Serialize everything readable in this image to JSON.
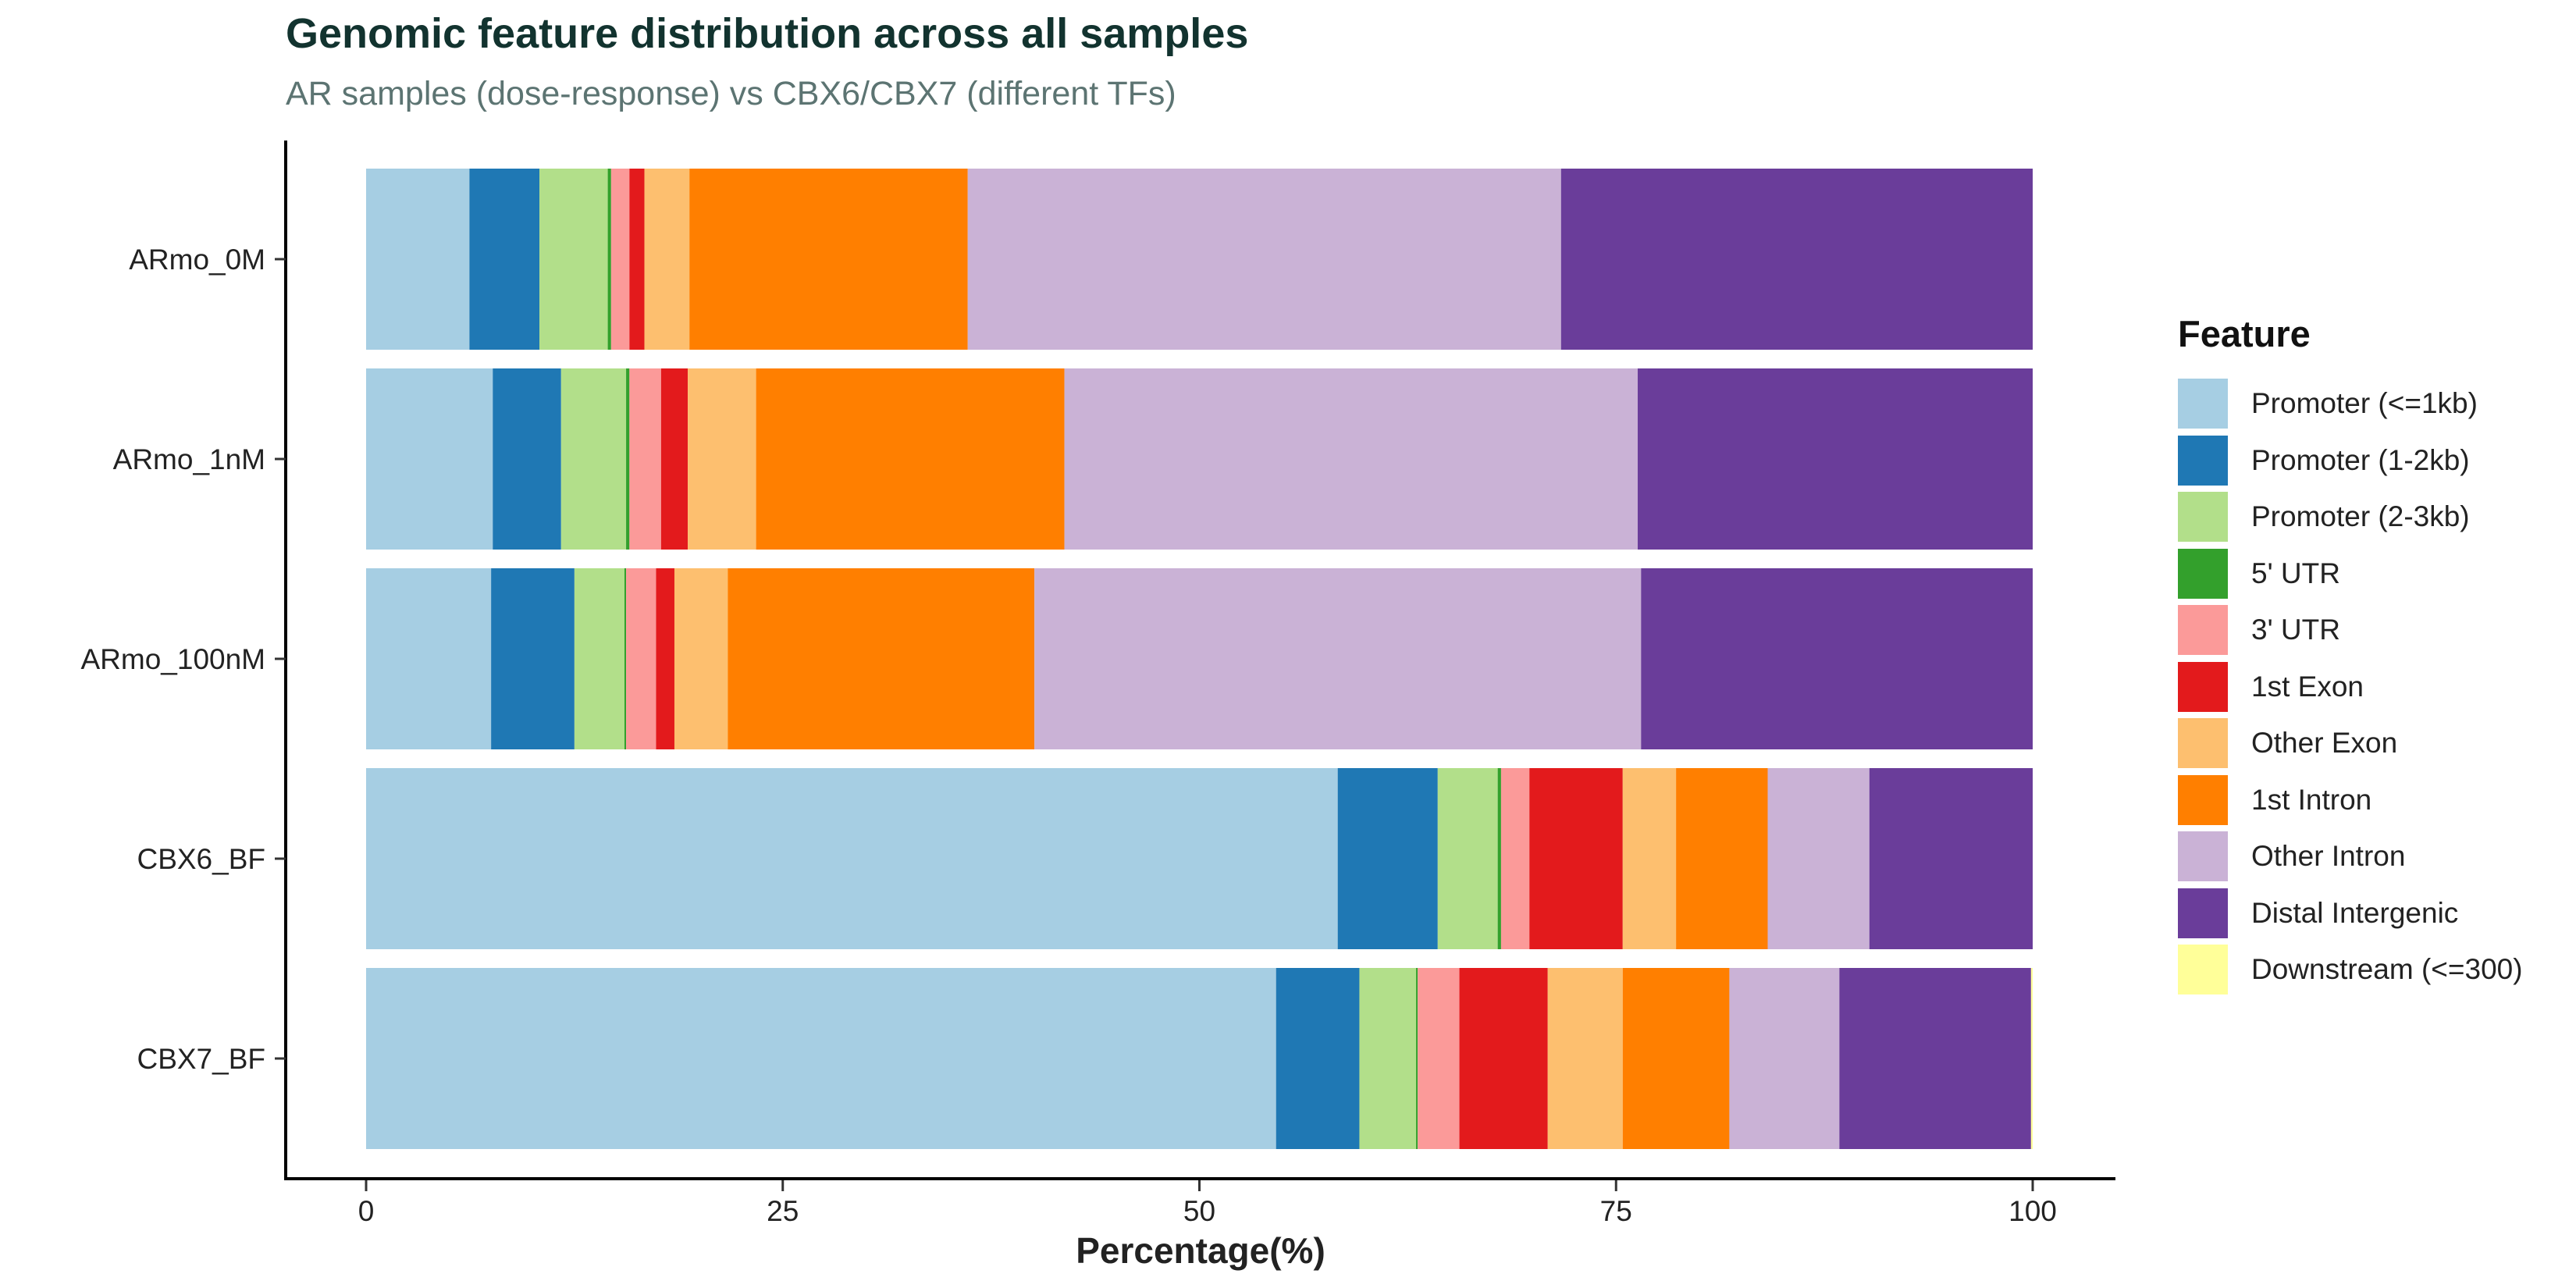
{
  "chart_data": {
    "type": "bar",
    "orientation": "horizontal",
    "stacked": true,
    "title": "Genomic feature distribution across all samples",
    "subtitle": "AR samples (dose-response) vs CBX6/CBX7 (different TFs)",
    "xlabel": "Percentage(%)",
    "ylabel": "",
    "xlim": [
      0,
      100
    ],
    "x_ticks": [
      0,
      25,
      50,
      75,
      100
    ],
    "grid": false,
    "legend_title": "Feature",
    "legend_position": "right",
    "categories": [
      "ARmo_0M",
      "ARmo_1nM",
      "ARmo_100nM",
      "CBX6_BF",
      "CBX7_BF"
    ],
    "series": [
      {
        "name": "Promoter (<=1kb)",
        "color": "#a6cee3",
        "values": [
          6.2,
          7.6,
          7.5,
          58.3,
          54.6
        ]
      },
      {
        "name": "Promoter (1-2kb)",
        "color": "#1f78b4",
        "values": [
          4.2,
          4.1,
          5.0,
          6.0,
          5.0
        ]
      },
      {
        "name": "Promoter (2-3kb)",
        "color": "#b2df8a",
        "values": [
          4.1,
          3.9,
          3.0,
          3.6,
          3.4
        ]
      },
      {
        "name": "5' UTR",
        "color": "#33a02c",
        "values": [
          0.2,
          0.2,
          0.1,
          0.2,
          0.1
        ]
      },
      {
        "name": "3' UTR",
        "color": "#fb9a99",
        "values": [
          1.1,
          1.9,
          1.8,
          1.7,
          2.5
        ]
      },
      {
        "name": "1st Exon",
        "color": "#e31a1c",
        "values": [
          0.9,
          1.6,
          1.1,
          5.6,
          5.3
        ]
      },
      {
        "name": "Other Exon",
        "color": "#fdbf6f",
        "values": [
          2.7,
          4.1,
          3.2,
          3.2,
          4.5
        ]
      },
      {
        "name": "1st Intron",
        "color": "#ff7f00",
        "values": [
          16.7,
          18.5,
          18.4,
          5.5,
          6.4
        ]
      },
      {
        "name": "Other Intron",
        "color": "#cab2d6",
        "values": [
          35.6,
          34.4,
          36.4,
          6.1,
          6.6
        ]
      },
      {
        "name": "Distal Intergenic",
        "color": "#6a3d9a",
        "values": [
          28.3,
          23.7,
          23.5,
          9.8,
          11.5
        ]
      },
      {
        "name": "Downstream (<=300)",
        "color": "#ffff99",
        "values": [
          0,
          0,
          0,
          0,
          0.1
        ]
      }
    ]
  }
}
